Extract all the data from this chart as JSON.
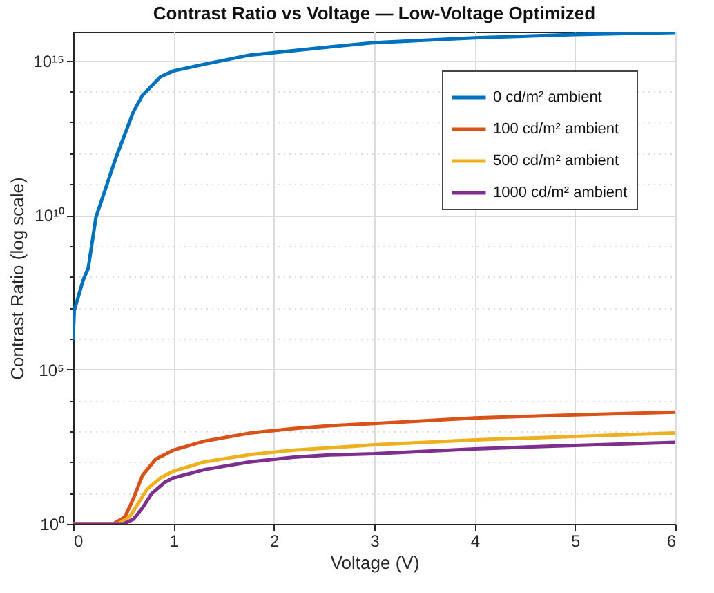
{
  "chart_data": {
    "type": "line",
    "title": "Contrast Ratio vs Voltage — Low-Voltage Optimized",
    "xlabel": "Voltage (V)",
    "ylabel": "Contrast Ratio (log scale)",
    "series": [
      {
        "name": "0 cd/m² ambient",
        "color": "#0072bd",
        "x": [
          0,
          0.01,
          0.05,
          0.1,
          0.15,
          0.226,
          0.426,
          0.6,
          0.69,
          0.87,
          1.0,
          1.31,
          1.76,
          2.2,
          2.55,
          3.0,
          4.0,
          5.0,
          6.0
        ],
        "values": [
          1000000.0,
          7900000.0,
          22000000.0,
          79000000.0,
          190000000.0,
          8300000000.0,
          720000000000.0,
          22000000000000.0,
          74000000000000.0,
          300000000000000.0,
          460000000000000.0,
          760000000000000.0,
          1500000000000000.0,
          2100000000000000.0,
          2750000000000000.0,
          3800000000000000.0,
          5400000000000000.0,
          6900000000000000.0,
          8100000000000000.0
        ]
      },
      {
        "name": "100 cd/m² ambient",
        "color": "#d95319",
        "x": [
          0,
          0.4,
          0.515,
          0.6,
          0.69,
          0.82,
          1.0,
          1.31,
          1.76,
          2.2,
          2.55,
          3.0,
          4.0,
          5.0,
          6.0
        ],
        "values": [
          1,
          1,
          1.66,
          6.6,
          37,
          123,
          245,
          479,
          871,
          1230,
          1510,
          1780,
          2690,
          3390,
          4170
        ]
      },
      {
        "name": "500 cd/m² ambient",
        "color": "#edb120",
        "x": [
          0,
          0.45,
          0.56,
          0.65,
          0.735,
          0.87,
          1.0,
          1.31,
          1.76,
          2.2,
          2.55,
          3.0,
          4.0,
          5.0,
          6.0
        ],
        "values": [
          1,
          1,
          1.66,
          4.7,
          13.2,
          31,
          51,
          102,
          174,
          245,
          288,
          363,
          525,
          676,
          871
        ]
      },
      {
        "name": "1000 cd/m² ambient",
        "color": "#7e2f8e",
        "x": [
          0,
          0.5,
          0.6,
          0.69,
          0.78,
          0.91,
          1.0,
          1.31,
          1.76,
          2.2,
          2.55,
          3.0,
          4.0,
          5.0,
          6.0
        ],
        "values": [
          1,
          1,
          1.41,
          3.3,
          9.3,
          21.9,
          31,
          57.5,
          102,
          145,
          170,
          186,
          269,
          347,
          437
        ]
      }
    ],
    "xlim": [
      0,
      6
    ],
    "xticks": [
      0,
      1,
      2,
      3,
      4,
      5,
      6
    ],
    "ylim": [
      1,
      8500000000000000.0
    ],
    "yticks": [
      {
        "value": 1,
        "label": "10⁰"
      },
      {
        "value": 10,
        "label": null
      },
      {
        "value": 100,
        "label": null
      },
      {
        "value": 1000,
        "label": null
      },
      {
        "value": 10000,
        "label": null
      },
      {
        "value": 100000,
        "label": "10⁵"
      },
      {
        "value": 1000000,
        "label": null
      },
      {
        "value": 10000000,
        "label": null
      },
      {
        "value": 100000000,
        "label": null
      },
      {
        "value": 1000000000,
        "label": null
      },
      {
        "value": 10000000000,
        "label": "10¹⁰"
      },
      {
        "value": 100000000000,
        "label": null
      },
      {
        "value": 1000000000000,
        "label": null
      },
      {
        "value": 10000000000000,
        "label": null
      },
      {
        "value": 100000000000000,
        "label": null
      },
      {
        "value": 1000000000000000,
        "label": "10¹⁵"
      }
    ],
    "log": "y",
    "grid": true,
    "legend": "top right"
  }
}
